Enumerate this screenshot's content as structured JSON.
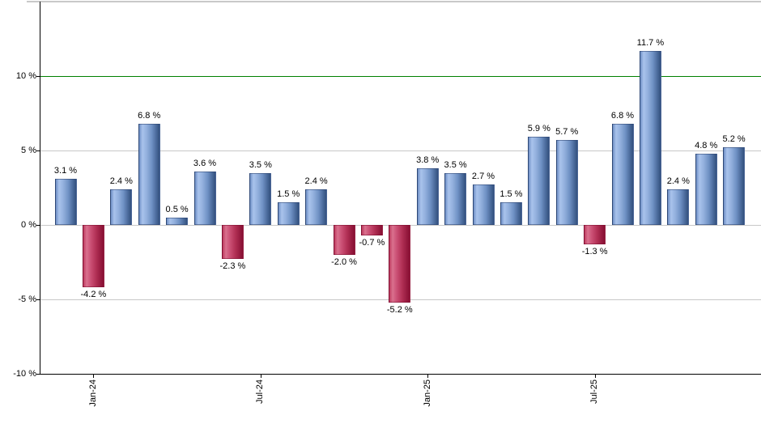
{
  "chart_data": {
    "type": "bar",
    "title": "",
    "xlabel": "",
    "ylabel": "",
    "values": [
      3.1,
      -4.2,
      2.4,
      6.8,
      0.5,
      3.6,
      -2.3,
      3.5,
      1.5,
      2.4,
      -2.0,
      -0.7,
      -5.2,
      3.8,
      3.5,
      2.7,
      1.5,
      5.9,
      5.7,
      -1.3,
      6.8,
      11.7,
      2.4,
      4.8,
      5.2
    ],
    "value_labels": [
      "3.1 %",
      "-4.2 %",
      "2.4 %",
      "6.8 %",
      "0.5 %",
      "3.6 %",
      "-2.3 %",
      "3.5 %",
      "1.5 %",
      "2.4 %",
      "-2.0 %",
      "-0.7 %",
      "-5.2 %",
      "3.8 %",
      "3.5 %",
      "2.7 %",
      "1.5 %",
      "5.9 %",
      "5.7 %",
      "-1.3 %",
      "6.8 %",
      "11.7 %",
      "2.4 %",
      "4.8 %",
      "5.2 %"
    ],
    "x_ticks": [
      {
        "index": 1,
        "label": "Jan-24"
      },
      {
        "index": 7,
        "label": "Jul-24"
      },
      {
        "index": 13,
        "label": "Jan-25"
      },
      {
        "index": 19,
        "label": "Jul-25"
      }
    ],
    "y_ticks": [
      {
        "value": 10,
        "label": "10 %"
      },
      {
        "value": 5,
        "label": "5 %"
      },
      {
        "value": 0,
        "label": "0 %"
      },
      {
        "value": -5,
        "label": "-5 %"
      },
      {
        "value": -10,
        "label": "-10 %"
      }
    ],
    "ylim": [
      -10,
      15
    ],
    "grid": "horizontal-on",
    "legend": "none",
    "reference_line": {
      "value": 10,
      "color": "#008000"
    }
  },
  "colors": {
    "positive_bar_base": "#8caede",
    "positive_bar_edge": "#33517e",
    "negative_bar_base": "#c94b6e",
    "negative_bar_edge": "#871033",
    "reference_line": "#008000",
    "gridline": "#c8c8c8",
    "axis": "#000000",
    "label_text": "#000000",
    "background": "#ffffff"
  }
}
